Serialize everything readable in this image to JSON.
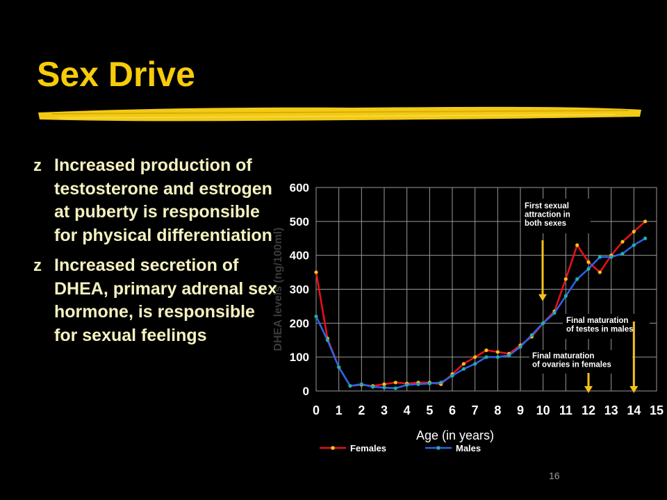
{
  "slide": {
    "title": "Sex Drive",
    "bullets": [
      "Increased production of testosterone and estrogen at puberty is responsible for physical differentiation",
      "Increased secretion of DHEA, primary adrenal sex hormone, is responsible for sexual feelings"
    ],
    "bullet_marker": "z",
    "page_number": "16"
  },
  "colors": {
    "background": "#000000",
    "title": "#F7CC0A",
    "body_text": "#F5F2C0",
    "females_line": "#E8101A",
    "males_line": "#2E62E8",
    "marker": "#F3C21A",
    "annotation_arrow": "#F3C21A"
  },
  "chart_data": {
    "type": "line",
    "xlabel": "Age (in years)",
    "ylabel": "DHEA levels (ng/100ml)",
    "xlim": [
      0,
      15
    ],
    "ylim": [
      0,
      600
    ],
    "x_ticks": [
      "0",
      "1",
      "2",
      "3",
      "4",
      "5",
      "6",
      "7",
      "8",
      "9",
      "10",
      "11",
      "12",
      "13",
      "14",
      "15"
    ],
    "y_ticks": [
      "0",
      "100",
      "200",
      "300",
      "400",
      "500",
      "600"
    ],
    "grid": true,
    "legend_position": "bottom",
    "series": [
      {
        "name": "Females",
        "points": [
          [
            0,
            350
          ],
          [
            0.5,
            155
          ],
          [
            1,
            70
          ],
          [
            1.5,
            15
          ],
          [
            2,
            18
          ],
          [
            2.5,
            15
          ],
          [
            3,
            20
          ],
          [
            3.5,
            25
          ],
          [
            4,
            22
          ],
          [
            4.5,
            25
          ],
          [
            5,
            25
          ],
          [
            5.5,
            20
          ],
          [
            6,
            50
          ],
          [
            6.5,
            80
          ],
          [
            7,
            100
          ],
          [
            7.5,
            120
          ],
          [
            8,
            115
          ],
          [
            8.5,
            110
          ],
          [
            9,
            135
          ],
          [
            9.5,
            160
          ],
          [
            10,
            200
          ],
          [
            10.5,
            235
          ],
          [
            11,
            330
          ],
          [
            11.5,
            430
          ],
          [
            12,
            380
          ],
          [
            12.5,
            350
          ],
          [
            13,
            400
          ],
          [
            13.5,
            440
          ],
          [
            14,
            470
          ],
          [
            14.5,
            500
          ]
        ]
      },
      {
        "name": "Males",
        "points": [
          [
            0,
            220
          ],
          [
            0.5,
            150
          ],
          [
            1,
            70
          ],
          [
            1.5,
            15
          ],
          [
            2,
            20
          ],
          [
            2.5,
            12
          ],
          [
            3,
            10
          ],
          [
            3.5,
            8
          ],
          [
            4,
            18
          ],
          [
            4.5,
            20
          ],
          [
            5,
            22
          ],
          [
            5.5,
            25
          ],
          [
            6,
            45
          ],
          [
            6.5,
            65
          ],
          [
            7,
            80
          ],
          [
            7.5,
            100
          ],
          [
            8,
            100
          ],
          [
            8.5,
            105
          ],
          [
            9,
            130
          ],
          [
            9.5,
            165
          ],
          [
            10,
            200
          ],
          [
            10.5,
            230
          ],
          [
            11,
            280
          ],
          [
            11.5,
            330
          ],
          [
            12,
            360
          ],
          [
            12.5,
            395
          ],
          [
            13,
            395
          ],
          [
            13.5,
            405
          ],
          [
            14,
            430
          ],
          [
            14.5,
            450
          ]
        ]
      }
    ],
    "annotations": [
      {
        "text": "First sexual attraction in both sexes",
        "arrow_x": 10.5,
        "arrow_to_y": 265
      },
      {
        "text": "Final maturation of testes in males",
        "arrow_x": 14,
        "arrow_to_y": 5
      },
      {
        "text": "Final maturation of ovaries in females",
        "arrow_x": 12,
        "arrow_to_y": 5
      }
    ]
  }
}
